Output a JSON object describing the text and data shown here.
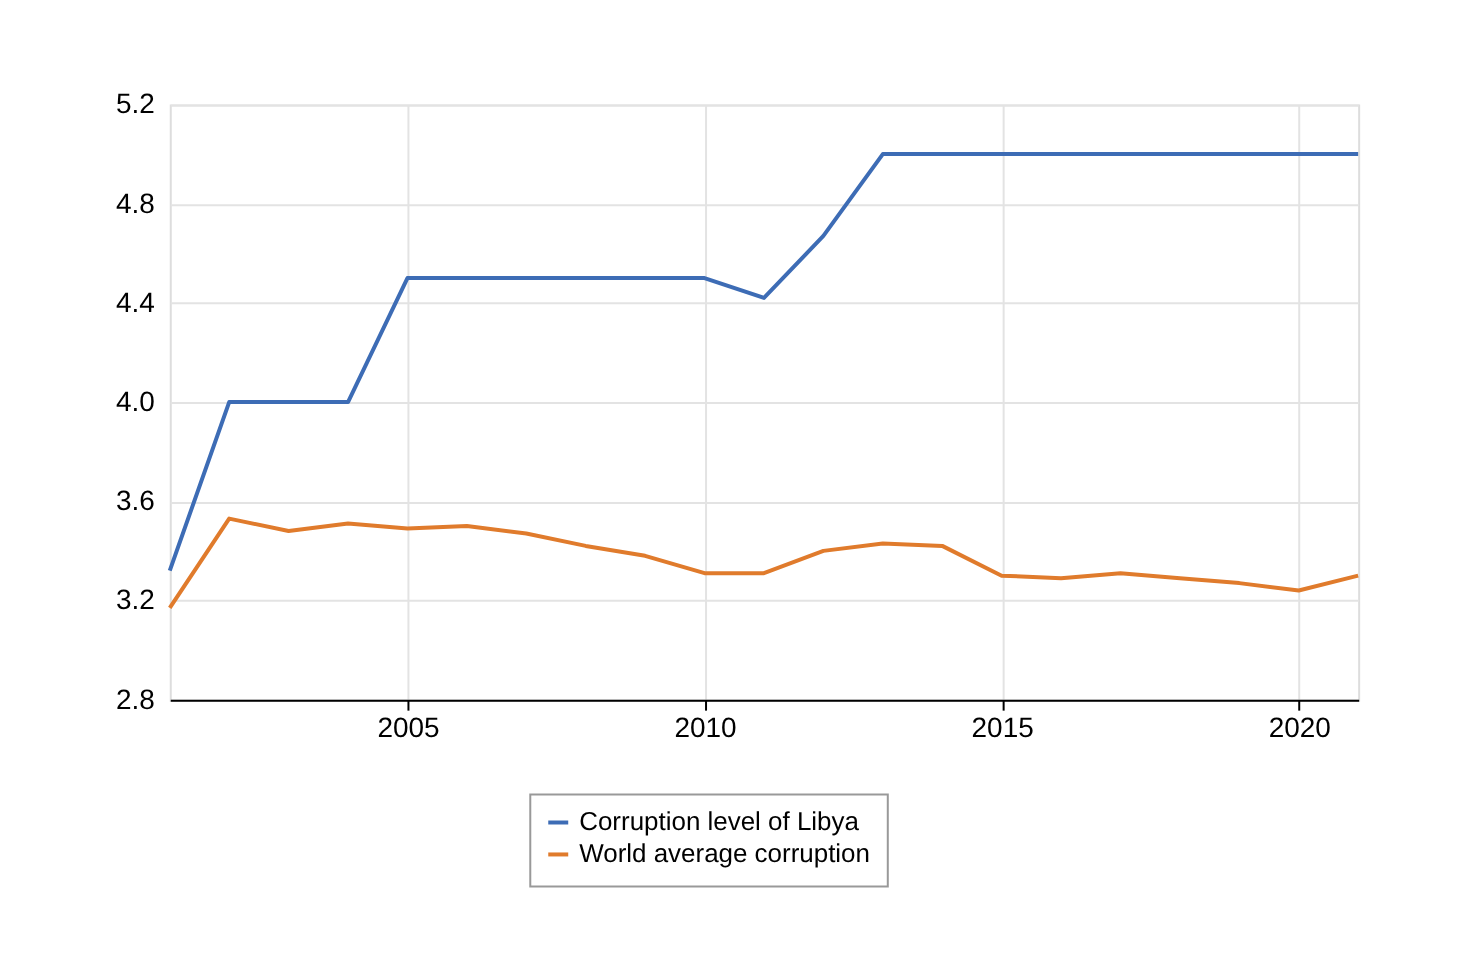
{
  "chart_data": {
    "type": "line",
    "x": [
      2001,
      2002,
      2003,
      2004,
      2005,
      2006,
      2007,
      2008,
      2009,
      2010,
      2011,
      2012,
      2013,
      2014,
      2015,
      2016,
      2017,
      2018,
      2019,
      2020,
      2021
    ],
    "series": [
      {
        "name": "Corruption level of Libya",
        "color": "#3d6cb5",
        "values": [
          3.32,
          4.0,
          4.0,
          4.0,
          4.5,
          4.5,
          4.5,
          4.5,
          4.5,
          4.5,
          4.42,
          4.67,
          5.0,
          5.0,
          5.0,
          5.0,
          5.0,
          5.0,
          5.0,
          5.0,
          5.0
        ]
      },
      {
        "name": "World average corruption",
        "color": "#e07b2c",
        "values": [
          3.17,
          3.53,
          3.48,
          3.51,
          3.49,
          3.5,
          3.47,
          3.42,
          3.38,
          3.31,
          3.31,
          3.4,
          3.43,
          3.42,
          3.3,
          3.29,
          3.31,
          3.29,
          3.27,
          3.24,
          3.3
        ]
      }
    ],
    "xlim": [
      2001,
      2021
    ],
    "xticks": [
      2005,
      2010,
      2015,
      2020
    ],
    "ylim": [
      2.8,
      5.2
    ],
    "yticks": [
      2.8,
      3.2,
      3.6,
      {
        "value": 4,
        "label": "4.0"
      },
      4.4,
      4.8,
      5.2
    ],
    "grid": true,
    "legend": "bottom",
    "marker": "none",
    "line_style": "solid"
  }
}
